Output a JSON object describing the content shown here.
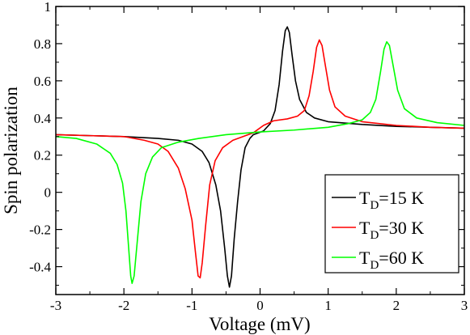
{
  "chart_data": {
    "type": "line",
    "title": "",
    "xlabel": "Voltage (mV)",
    "ylabel": "Spin polarization",
    "xlim": [
      -3,
      3
    ],
    "ylim": [
      -0.55,
      1.0
    ],
    "x_ticks": [
      "-3",
      "-2",
      "-1",
      "0",
      "1",
      "2",
      "3"
    ],
    "y_ticks": [
      "-0.4",
      "-0.2",
      "0",
      "0.2",
      "0.4",
      "0.6",
      "0.8",
      "1"
    ],
    "x_tick_values": [
      -3,
      -2,
      -1,
      0,
      1,
      2,
      3
    ],
    "y_tick_values": [
      -0.4,
      -0.2,
      0,
      0.2,
      0.4,
      0.6,
      0.8,
      1
    ],
    "grid": false,
    "legend_position": "bottom-right",
    "series": [
      {
        "name": "T_D=15 K",
        "legend_main": "T",
        "legend_sub": "D",
        "legend_rest": "=15 K",
        "color": "#000000",
        "points": [
          [
            -3,
            0.31
          ],
          [
            -2.5,
            0.305
          ],
          [
            -2.0,
            0.3
          ],
          [
            -1.5,
            0.29
          ],
          [
            -1.2,
            0.28
          ],
          [
            -1.0,
            0.26
          ],
          [
            -0.85,
            0.22
          ],
          [
            -0.75,
            0.16
          ],
          [
            -0.65,
            0.04
          ],
          [
            -0.58,
            -0.1
          ],
          [
            -0.52,
            -0.3
          ],
          [
            -0.48,
            -0.45
          ],
          [
            -0.45,
            -0.51
          ],
          [
            -0.42,
            -0.45
          ],
          [
            -0.38,
            -0.25
          ],
          [
            -0.33,
            -0.05
          ],
          [
            -0.28,
            0.12
          ],
          [
            -0.22,
            0.24
          ],
          [
            -0.15,
            0.29
          ],
          [
            -0.1,
            0.31
          ],
          [
            0.05,
            0.33
          ],
          [
            0.15,
            0.37
          ],
          [
            0.22,
            0.44
          ],
          [
            0.28,
            0.58
          ],
          [
            0.33,
            0.76
          ],
          [
            0.37,
            0.87
          ],
          [
            0.4,
            0.89
          ],
          [
            0.43,
            0.86
          ],
          [
            0.47,
            0.74
          ],
          [
            0.52,
            0.6
          ],
          [
            0.58,
            0.5
          ],
          [
            0.68,
            0.43
          ],
          [
            0.8,
            0.4
          ],
          [
            1.0,
            0.38
          ],
          [
            1.5,
            0.365
          ],
          [
            2.0,
            0.355
          ],
          [
            2.5,
            0.35
          ],
          [
            3,
            0.345
          ]
        ]
      },
      {
        "name": "T_D=30 K",
        "legend_main": "T",
        "legend_sub": "D",
        "legend_rest": "=30 K",
        "color": "#ff0000",
        "points": [
          [
            -3,
            0.31
          ],
          [
            -2.5,
            0.305
          ],
          [
            -2.0,
            0.3
          ],
          [
            -1.7,
            0.28
          ],
          [
            -1.5,
            0.26
          ],
          [
            -1.35,
            0.22
          ],
          [
            -1.2,
            0.13
          ],
          [
            -1.1,
            0.02
          ],
          [
            -1.0,
            -0.15
          ],
          [
            -0.95,
            -0.32
          ],
          [
            -0.91,
            -0.45
          ],
          [
            -0.88,
            -0.46
          ],
          [
            -0.85,
            -0.38
          ],
          [
            -0.8,
            -0.18
          ],
          [
            -0.74,
            0.04
          ],
          [
            -0.66,
            0.17
          ],
          [
            -0.55,
            0.24
          ],
          [
            -0.4,
            0.28
          ],
          [
            -0.25,
            0.3
          ],
          [
            -0.1,
            0.32
          ],
          [
            0.05,
            0.36
          ],
          [
            0.2,
            0.385
          ],
          [
            0.4,
            0.395
          ],
          [
            0.55,
            0.41
          ],
          [
            0.65,
            0.44
          ],
          [
            0.72,
            0.52
          ],
          [
            0.78,
            0.65
          ],
          [
            0.83,
            0.78
          ],
          [
            0.87,
            0.82
          ],
          [
            0.91,
            0.79
          ],
          [
            0.96,
            0.68
          ],
          [
            1.02,
            0.55
          ],
          [
            1.1,
            0.46
          ],
          [
            1.25,
            0.41
          ],
          [
            1.5,
            0.38
          ],
          [
            2.0,
            0.36
          ],
          [
            2.5,
            0.35
          ],
          [
            3,
            0.345
          ]
        ]
      },
      {
        "name": "T_D=60 K",
        "legend_main": "T",
        "legend_sub": "D",
        "legend_rest": "=60 K",
        "color": "#00ff00",
        "points": [
          [
            -3,
            0.3
          ],
          [
            -2.7,
            0.29
          ],
          [
            -2.4,
            0.26
          ],
          [
            -2.2,
            0.21
          ],
          [
            -2.1,
            0.15
          ],
          [
            -2.02,
            0.05
          ],
          [
            -1.97,
            -0.1
          ],
          [
            -1.93,
            -0.3
          ],
          [
            -1.9,
            -0.45
          ],
          [
            -1.88,
            -0.49
          ],
          [
            -1.85,
            -0.45
          ],
          [
            -1.8,
            -0.25
          ],
          [
            -1.75,
            -0.05
          ],
          [
            -1.68,
            0.1
          ],
          [
            -1.58,
            0.19
          ],
          [
            -1.45,
            0.24
          ],
          [
            -1.2,
            0.27
          ],
          [
            -0.9,
            0.29
          ],
          [
            -0.5,
            0.31
          ],
          [
            0,
            0.325
          ],
          [
            0.5,
            0.335
          ],
          [
            1.0,
            0.35
          ],
          [
            1.3,
            0.37
          ],
          [
            1.5,
            0.39
          ],
          [
            1.62,
            0.43
          ],
          [
            1.7,
            0.5
          ],
          [
            1.77,
            0.65
          ],
          [
            1.82,
            0.77
          ],
          [
            1.86,
            0.81
          ],
          [
            1.9,
            0.79
          ],
          [
            1.95,
            0.69
          ],
          [
            2.02,
            0.55
          ],
          [
            2.12,
            0.45
          ],
          [
            2.3,
            0.4
          ],
          [
            2.6,
            0.375
          ],
          [
            3,
            0.36
          ]
        ]
      }
    ]
  }
}
